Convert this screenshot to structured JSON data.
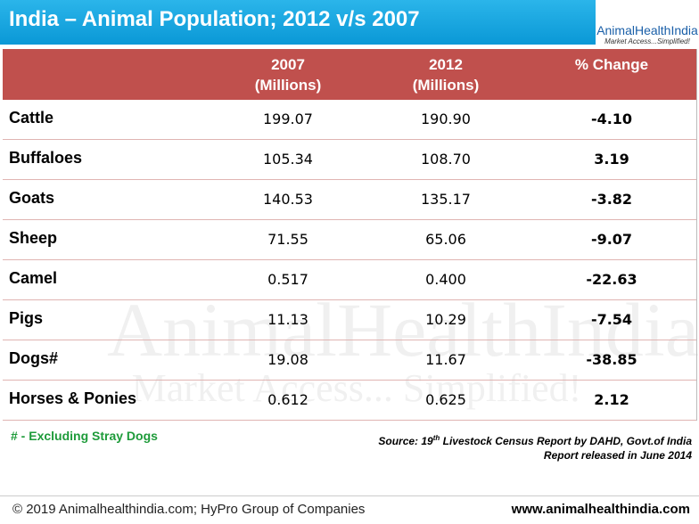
{
  "header": {
    "title": "India – Animal Population; 2012 v/s 2007",
    "logo": {
      "name": "AnimalHealthIndia",
      "tagline": "Market Access...Simplified!"
    }
  },
  "watermark": {
    "name": "AnimalHealthIndia",
    "tagline": "Market Access... Simplified!"
  },
  "table": {
    "columns": [
      {
        "lines": [
          "2007",
          "(Millions)"
        ]
      },
      {
        "lines": [
          "2012",
          "(Millions)"
        ]
      },
      {
        "lines": [
          "% Change"
        ]
      }
    ],
    "rows": [
      [
        "Cattle",
        "199.07",
        "190.90",
        "-4.10"
      ],
      [
        "Buffaloes",
        "105.34",
        "108.70",
        "3.19"
      ],
      [
        "Goats",
        "140.53",
        "135.17",
        "-3.82"
      ],
      [
        "Sheep",
        "71.55",
        "65.06",
        "-9.07"
      ],
      [
        "Camel",
        "0.517",
        "0.400",
        "-22.63"
      ],
      [
        "Pigs",
        "11.13",
        "10.29",
        "-7.54"
      ],
      [
        "Dogs#",
        "19.08",
        "11.67",
        "-38.85"
      ],
      [
        "Horses & Ponies",
        "0.612",
        "0.625",
        "2.12"
      ]
    ]
  },
  "footnote": "# - Excluding Stray Dogs",
  "source": {
    "prefix": "Source: 19",
    "sup": "th",
    "rest": " Livestock Census Report by DAHD, Govt.of India",
    "line2": "Report released in June 2014"
  },
  "footer": {
    "copyright": "© 2019 Animalhealthindia.com;  HyPro Group of Companies",
    "url": "www.animalhealthindia.com"
  }
}
